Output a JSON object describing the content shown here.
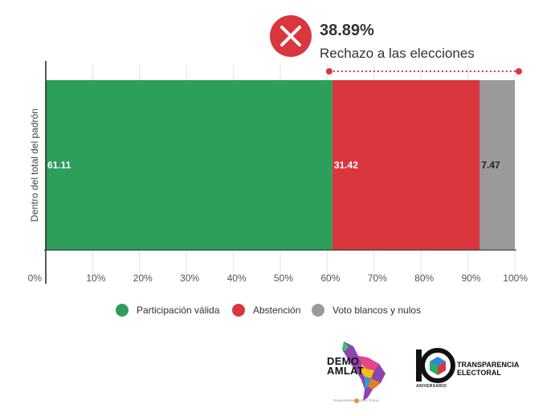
{
  "chart_data": {
    "type": "bar",
    "orientation": "horizontal",
    "stacked": true,
    "categories": [
      "Dentro del total del padrón"
    ],
    "series": [
      {
        "name": "Participación válida",
        "values": [
          61.11
        ],
        "color": "#2e9e5b",
        "label": "61.11"
      },
      {
        "name": "Abstención",
        "values": [
          31.42
        ],
        "color": "#d9363e",
        "label": "31.42"
      },
      {
        "name": "Voto blancos y nulos",
        "values": [
          7.47
        ],
        "color": "#9a9a9a",
        "label": "7.47"
      }
    ],
    "xlim": [
      0,
      100
    ],
    "xticks": [
      "0%",
      "10%",
      "20%",
      "30%",
      "40%",
      "50%",
      "60%",
      "70%",
      "80%",
      "90%",
      "100%"
    ],
    "ylabel": "Dentro del total del padrón",
    "grid": true,
    "legend_position": "bottom",
    "callout": {
      "value": "38.89%",
      "text": "Rechazo a las elecciones",
      "range": [
        61.11,
        100
      ],
      "color": "#d9363e"
    }
  },
  "logos": {
    "demoamlat": {
      "name_line1": "DEMO",
      "name_line2": "AMLAT",
      "fine_print": "TRANSPARENCIA ELECTORAL"
    },
    "transparencia": {
      "number": "10",
      "org_line1": "TRANSPARENCIA",
      "org_line2": "ELECTORAL",
      "anniversary": "ANIVERSARIO"
    }
  }
}
